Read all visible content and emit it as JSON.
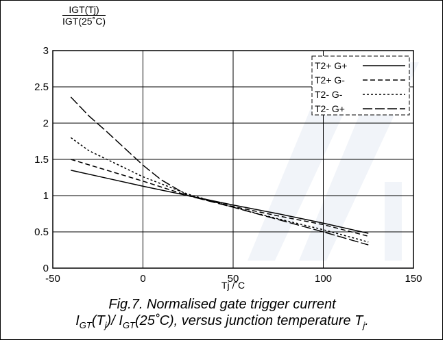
{
  "chart_data": {
    "type": "line",
    "ylabel_numerator": "IGT(Tj)",
    "ylabel_denominator": "IGT(25˚C)",
    "xlabel": "Tj /˚C",
    "xlim": [
      -50,
      150
    ],
    "ylim": [
      0,
      3
    ],
    "xticks": [
      "-50",
      "0",
      "50",
      "100",
      "150"
    ],
    "yticks": [
      "0",
      "0.5",
      "1",
      "1.5",
      "2",
      "2.5",
      "3"
    ],
    "grid": true,
    "legend_position": "top-right",
    "series": [
      {
        "name": "T2+ G+",
        "dash": "",
        "x": [
          -40,
          -20,
          0,
          25,
          50,
          75,
          100,
          125
        ],
        "y": [
          1.35,
          1.24,
          1.13,
          1.0,
          0.87,
          0.75,
          0.62,
          0.48
        ]
      },
      {
        "name": "T2+ G-",
        "dash": "7 4",
        "x": [
          -40,
          -20,
          0,
          25,
          50,
          75,
          100,
          125
        ],
        "y": [
          1.5,
          1.35,
          1.2,
          1.0,
          0.85,
          0.72,
          0.6,
          0.44
        ]
      },
      {
        "name": "T2- G-",
        "dash": "3 3",
        "x": [
          -40,
          -30,
          -20,
          -10,
          0,
          25,
          50,
          75,
          100,
          125
        ],
        "y": [
          1.8,
          1.62,
          1.5,
          1.38,
          1.26,
          1.02,
          0.84,
          0.68,
          0.53,
          0.36
        ]
      },
      {
        "name": "T2- G+",
        "dash": "14 4",
        "x": [
          -40,
          -30,
          -20,
          -10,
          0,
          10,
          25,
          50,
          75,
          100,
          125
        ],
        "y": [
          2.36,
          2.1,
          1.88,
          1.65,
          1.42,
          1.22,
          1.0,
          0.84,
          0.67,
          0.5,
          0.32
        ]
      }
    ]
  },
  "caption": {
    "line1": "Fig.7.   Normalised gate trigger current",
    "line2_parts": [
      "I",
      "GT",
      "(T",
      "j",
      ")/ I",
      "GT",
      "(25˚C), versus junction temperature T",
      "j",
      "."
    ]
  },
  "colors": {
    "line": "#000000",
    "grid": "#000000",
    "watermark": "#3a63a8"
  }
}
